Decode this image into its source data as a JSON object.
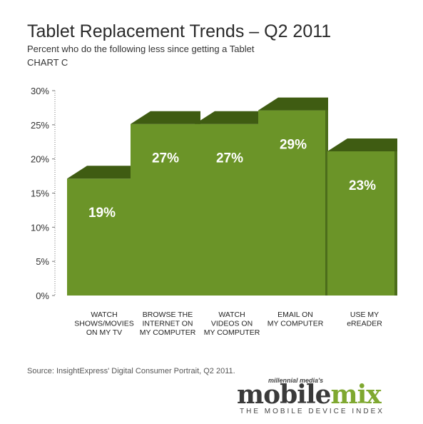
{
  "header": {
    "title": "Tablet Replacement Trends – Q2 2011",
    "subtitle": "Percent who do the following less since getting a Tablet",
    "chart_label": "CHART C"
  },
  "chart_data": {
    "type": "bar",
    "title": "Tablet Replacement Trends – Q2 2011",
    "subtitle": "Percent who do the following less since getting a Tablet",
    "categories": [
      [
        "WATCH",
        "SHOWS/MOVIES",
        "ON MY TV"
      ],
      [
        "BROWSE THE",
        "INTERNET ON",
        "MY COMPUTER"
      ],
      [
        "WATCH",
        "VIDEOS ON",
        "MY COMPUTER"
      ],
      [
        "EMAIL ON",
        "MY COMPUTER"
      ],
      [
        "USE MY",
        "eREADER"
      ]
    ],
    "values": [
      19,
      27,
      27,
      29,
      23
    ],
    "value_labels": [
      "19%",
      "27%",
      "27%",
      "29%",
      "23%"
    ],
    "yticks": [
      "0%",
      "5%",
      "10%",
      "15%",
      "20%",
      "25%",
      "30%"
    ],
    "ylim": [
      0,
      30
    ],
    "grid": false,
    "legend": "none",
    "colors": {
      "front": "#6b9428",
      "top": "#3f5c12",
      "side": "#4c6d1b",
      "label": "#ffffff"
    }
  },
  "footer": {
    "source": "Source: InsightExpress' Digital Consumer Portrait, Q2 2011."
  },
  "logo": {
    "tagline_top": "millennial media's",
    "brand_part1": "mobile",
    "brand_part2": "mix",
    "tagline_bottom": "THE MOBILE DEVICE INDEX"
  }
}
